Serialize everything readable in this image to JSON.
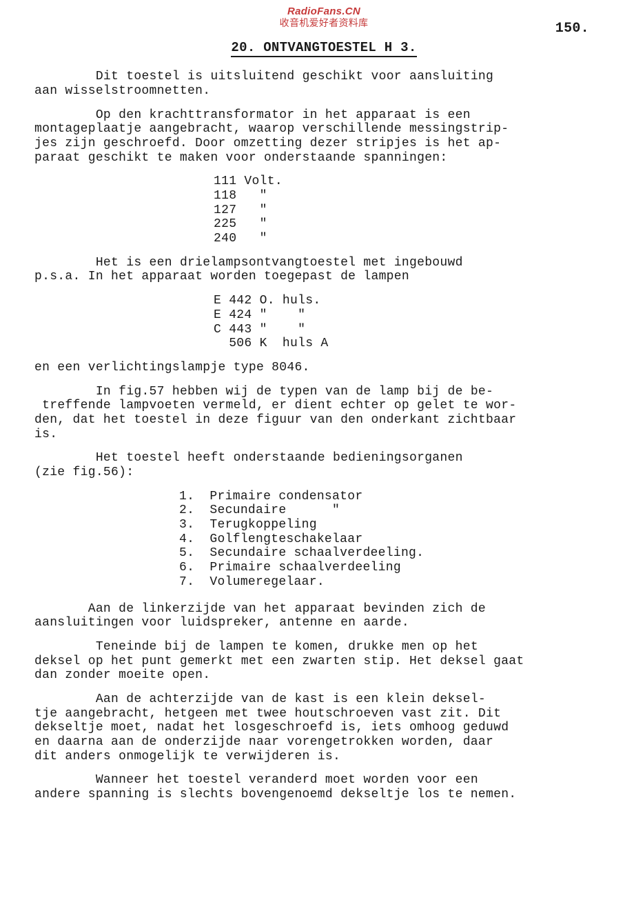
{
  "watermark": {
    "line1": "RadioFans.CN",
    "line2": "收音机爱好者资料库"
  },
  "page_number": "150.",
  "title": "20. ONTVANGTOESTEL  H 3.",
  "p1": "        Dit toestel is uitsluitend geschikt voor aansluiting\naan wisselstroomnetten.",
  "p2": "        Op den krachttransformator in het apparaat is een\nmontageplaatje aangebracht, waarop verschillende messingstrip-\njes zijn geschroefd. Door omzetting dezer stripjes is het ap-\nparaat geschikt te maken voor onderstaande spanningen:",
  "volt_block": "111 Volt.\n118   \"\n127   \"\n225   \"\n240   \"",
  "p3": "        Het is een drielampsontvangtoestel met ingebouwd\np.s.a. In het apparaat worden toegepast de lampen",
  "lamp_block": "E 442 O. huls.\nE 424 \"    \"\nC 443 \"    \"\n  506 K  huls A",
  "p4": "en een verlichtingslampje type 8046.",
  "p5": "        In fig.57 hebben wij de typen van de lamp bij de be-\n treffende lampvoeten vermeld, er dient echter op gelet te wor-\nden, dat het toestel in deze figuur van den onderkant zichtbaar\nis.",
  "p6": "        Het toestel heeft onderstaande bedieningsorganen\n(zie fig.56):",
  "controls_block": "1.  Primaire condensator\n2.  Secundaire      \"\n3.  Terugkoppeling\n4.  Golflengteschakelaar\n5.  Secundaire schaalverdeeling.\n6.  Primaire schaalverdeeling\n7.  Volumeregelaar.",
  "p7": "       Aan de linkerzijde van het apparaat bevinden zich de\naansluitingen voor luidspreker, antenne en aarde.",
  "p8": "        Teneinde bij de lampen te komen, drukke men op het\ndeksel op het punt gemerkt met een zwarten stip. Het deksel gaat\ndan zonder moeite open.",
  "p9": "        Aan de achterzijde van de kast is een klein deksel-\ntje aangebracht, hetgeen met twee houtschroeven vast zit. Dit\ndekseltje moet, nadat het losgeschroefd is, iets omhoog geduwd\nen daarna aan de onderzijde naar vorengetrokken worden, daar\ndit anders onmogelijk te verwijderen is.",
  "p10": "        Wanneer het toestel veranderd moet worden voor een\nandere spanning is slechts bovengenoemd dekseltje los te nemen."
}
